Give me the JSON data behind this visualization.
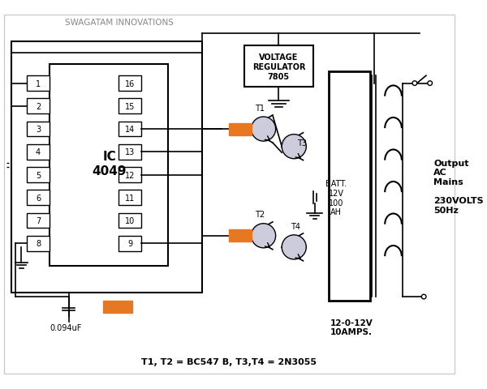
{
  "bg_color": "#ffffff",
  "border_color": "#000000",
  "text_color": "#000000",
  "orange_color": "#E87722",
  "gray_color": "#888888",
  "light_blue": "#AAAACC",
  "title": "SWAGATAM INNOVATIONS",
  "subtitle": "T1, T2 = BC547 B, T3,T4 = 2N3055",
  "ic_label": "IC\n4049",
  "vr_label": "VOLTAGE\nREGULATOR\n7805",
  "batt_label": "BATT.\n12V\n100\nAH",
  "output_label": "Output\nAC\nMains\n\n230VOLTS\n50Hz",
  "transformer_label": "12-0-12V\n10AMPS."
}
